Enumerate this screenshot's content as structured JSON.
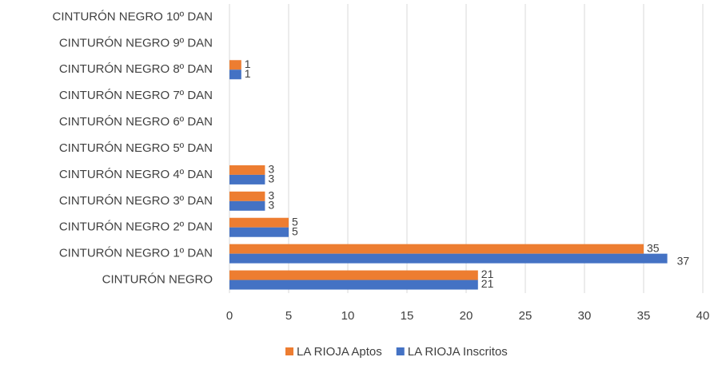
{
  "chart_data": {
    "type": "hbar",
    "categories": [
      "CINTURÓN NEGRO 10º DAN",
      "CINTURÓN NEGRO 9º DAN",
      "CINTURÓN NEGRO 8º DAN",
      "CINTURÓN NEGRO 7º DAN",
      "CINTURÓN NEGRO 6º DAN",
      "CINTURÓN NEGRO 5º DAN",
      "CINTURÓN NEGRO 4º DAN",
      "CINTURÓN NEGRO 3º DAN",
      "CINTURÓN NEGRO 2º DAN",
      "CINTURÓN NEGRO 1º DAN",
      "CINTURÓN NEGRO"
    ],
    "series": [
      {
        "name": "LA RIOJA Aptos",
        "color": "#ed7d31",
        "values": [
          null,
          null,
          1,
          null,
          null,
          null,
          3,
          3,
          5,
          35,
          21
        ]
      },
      {
        "name": "LA RIOJA Inscritos",
        "color": "#4472c4",
        "values": [
          null,
          null,
          1,
          null,
          null,
          null,
          3,
          3,
          5,
          37,
          21
        ]
      }
    ],
    "xlim": [
      0,
      40
    ],
    "xticks": [
      0,
      5,
      10,
      15,
      20,
      25,
      30,
      35,
      40
    ],
    "grid": true,
    "legend": "bottom"
  }
}
